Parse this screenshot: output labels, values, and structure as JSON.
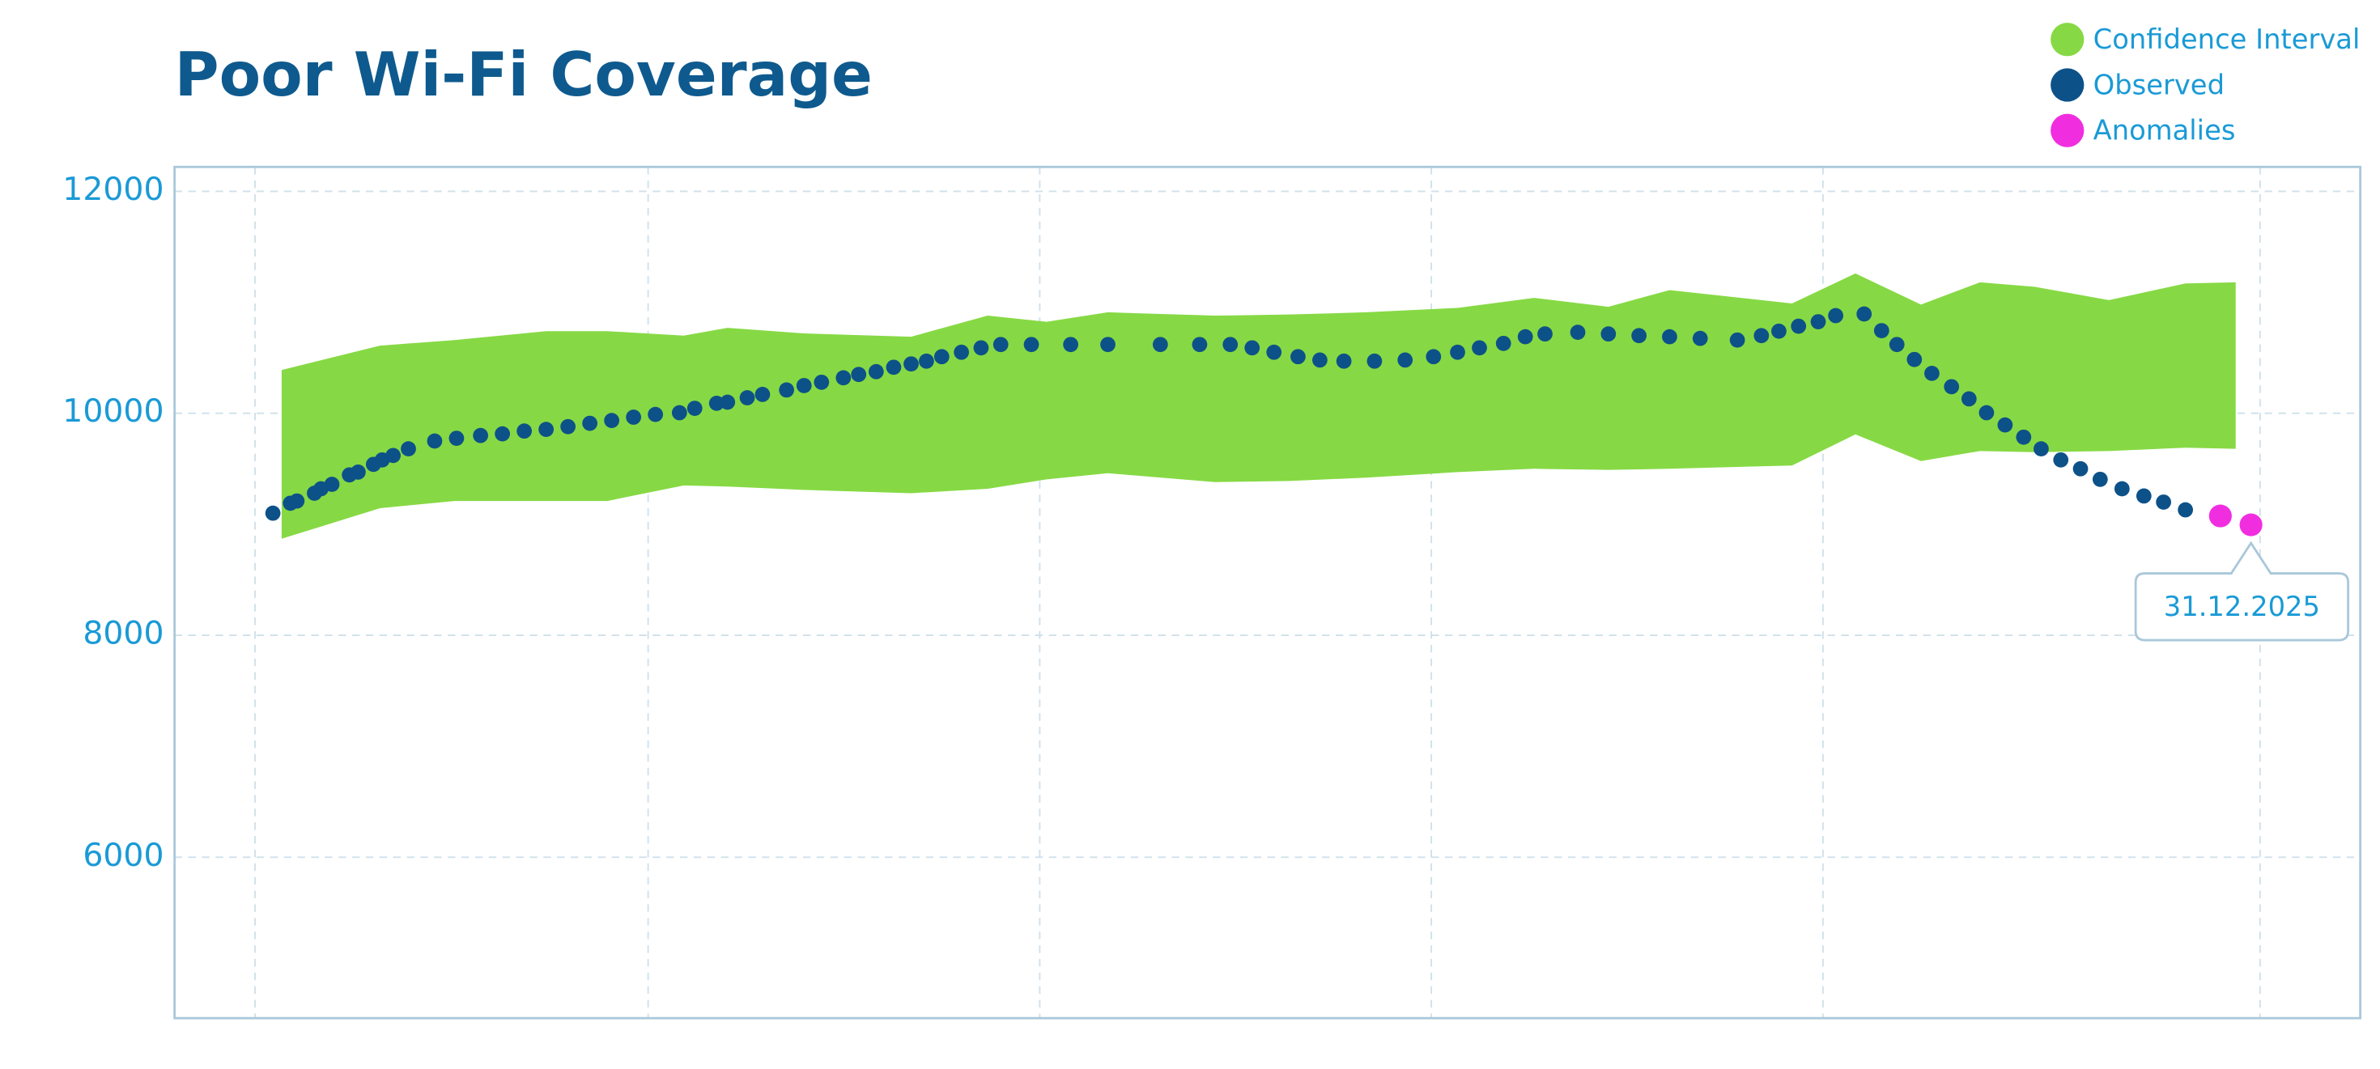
{
  "chart_data": {
    "type": "scatter",
    "title": "Poor Wi-Fi Coverage",
    "xlim": [
      0,
      100
    ],
    "ylim": [
      4550,
      12220
    ],
    "yticks": [
      6000,
      8000,
      10000,
      12000
    ],
    "grid": true,
    "series": [
      {
        "name": "Confidence Interval",
        "color": "#86d944",
        "x": [
          4.9,
          9.4,
          12.8,
          17.0,
          19.8,
          23.3,
          25.3,
          28.8,
          33.7,
          37.2,
          39.9,
          42.7,
          47.6,
          51.0,
          54.5,
          58.7,
          62.2,
          65.6,
          68.4,
          74.0,
          76.9,
          79.9,
          82.6,
          85.1,
          88.5,
          92.0,
          94.3
        ],
        "upper": [
          10390,
          10610,
          10660,
          10740,
          10740,
          10700,
          10770,
          10720,
          10690,
          10880,
          10825,
          10910,
          10880,
          10890,
          10910,
          10950,
          11040,
          10960,
          11110,
          10990,
          11260,
          10980,
          11180,
          11140,
          11020,
          11170,
          11180
        ],
        "lower": [
          8870,
          9145,
          9210,
          9210,
          9210,
          9350,
          9340,
          9310,
          9280,
          9320,
          9405,
          9460,
          9380,
          9390,
          9420,
          9470,
          9500,
          9490,
          9500,
          9530,
          9810,
          9570,
          9660,
          9650,
          9660,
          9690,
          9680
        ]
      },
      {
        "name": "Observed",
        "color": "#0d5189",
        "x": [
          4.5,
          5.3,
          5.6,
          6.4,
          6.7,
          7.2,
          8.0,
          8.4,
          9.1,
          9.5,
          10.0,
          10.7,
          11.9,
          12.9,
          14.0,
          15.0,
          16.0,
          17.0,
          18.0,
          19.0,
          20.0,
          21.0,
          22.0,
          23.1,
          23.8,
          24.8,
          25.3,
          26.2,
          26.9,
          28.0,
          28.8,
          29.6,
          30.6,
          31.3,
          32.1,
          32.9,
          33.7,
          34.4,
          35.1,
          36.0,
          36.9,
          37.8,
          39.2,
          41.0,
          42.7,
          45.1,
          46.9,
          48.3,
          49.3,
          50.3,
          51.4,
          52.4,
          53.5,
          54.9,
          56.3,
          57.6,
          58.7,
          59.7,
          60.8,
          61.8,
          62.7,
          64.2,
          65.6,
          67.0,
          68.4,
          69.8,
          71.5,
          72.6,
          73.4,
          74.3,
          75.2,
          76.0,
          77.3,
          78.1,
          78.8,
          79.6,
          80.4,
          81.3,
          82.1,
          82.9,
          83.75,
          84.6,
          85.4,
          86.3,
          87.2,
          88.1,
          89.1,
          90.1,
          91.0,
          92.0
        ],
        "values": [
          9100,
          9190,
          9210,
          9280,
          9320,
          9360,
          9445,
          9470,
          9540,
          9580,
          9620,
          9680,
          9750,
          9775,
          9800,
          9815,
          9840,
          9855,
          9880,
          9910,
          9935,
          9965,
          9990,
          10005,
          10045,
          10090,
          10100,
          10140,
          10170,
          10210,
          10250,
          10280,
          10320,
          10350,
          10375,
          10415,
          10445,
          10470,
          10510,
          10550,
          10590,
          10620,
          10620,
          10620,
          10620,
          10620,
          10620,
          10620,
          10590,
          10550,
          10510,
          10480,
          10470,
          10470,
          10480,
          10510,
          10550,
          10590,
          10630,
          10690,
          10715,
          10730,
          10715,
          10700,
          10690,
          10675,
          10660,
          10700,
          10740,
          10785,
          10825,
          10880,
          10895,
          10745,
          10620,
          10485,
          10360,
          10240,
          10130,
          10005,
          9895,
          9785,
          9680,
          9580,
          9500,
          9405,
          9320,
          9255,
          9200,
          9130
        ]
      },
      {
        "name": "Anomalies",
        "color": "#f02ee0",
        "x": [
          93.6,
          95.0
        ],
        "values": [
          9075,
          8995
        ]
      }
    ],
    "annotation": "31.12.2025"
  }
}
